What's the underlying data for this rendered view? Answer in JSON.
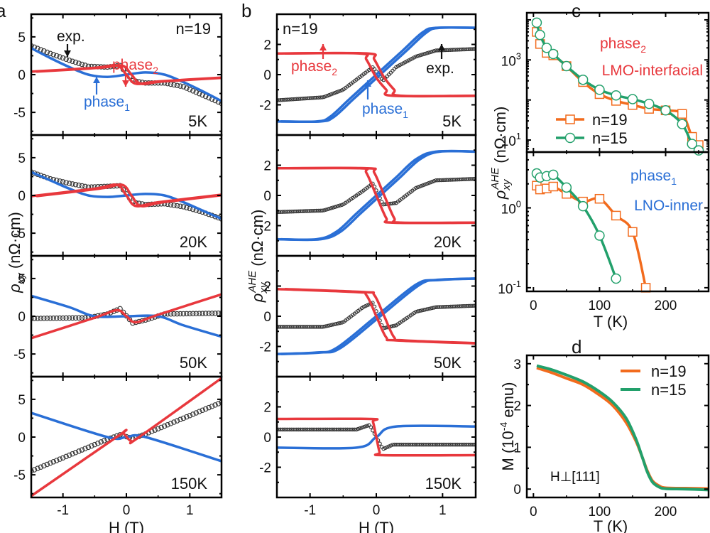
{
  "colors": {
    "phase1": "#2a6fd6",
    "phase2": "#e8383d",
    "exp": "#333333",
    "n19": "#f26b1d",
    "n15": "#22a06b",
    "axis": "#000000"
  },
  "chart_data": [
    {
      "id": "a",
      "panel_label": "a",
      "type": "line",
      "xlabel": "H (T)",
      "ylabel": "ρxy (nΩ·cm)",
      "xlim": [
        -1.5,
        1.5
      ],
      "ylim": [
        -8,
        8
      ],
      "xticks": [
        -1,
        0,
        1
      ],
      "yticks": [
        -5,
        0,
        5
      ],
      "annotations": {
        "n": "n=19",
        "exp": "exp.",
        "phase1": "phase",
        "phase1_sub": "1",
        "phase2": "phase",
        "phase2_sub": "2"
      },
      "subplots": [
        {
          "temp": "5K",
          "series": [
            {
              "name": "exp.",
              "x": [
                -1.5,
                -1.2,
                -0.9,
                -0.6,
                -0.3,
                -0.1,
                0.1,
                0.3,
                0.6,
                0.9,
                1.2,
                1.5
              ],
              "y": [
                3.8,
                2.8,
                1.9,
                1.1,
                1.0,
                1.2,
                -0.8,
                -1.1,
                -1.1,
                -1.6,
                -2.7,
                -3.8
              ]
            },
            {
              "name": "phase1",
              "x": [
                -1.5,
                -1.2,
                -0.9,
                -0.6,
                -0.3,
                0,
                0.3,
                0.6,
                0.9,
                1.2,
                1.5
              ],
              "y": [
                3.5,
                2.2,
                1.0,
                0.0,
                -0.3,
                0.0,
                0.3,
                0.0,
                -1.0,
                -2.2,
                -3.5
              ]
            },
            {
              "name": "phase2",
              "x": [
                -1.5,
                -0.5,
                -0.15,
                0.0,
                0.15,
                0.5,
                1.5
              ],
              "y": [
                0.4,
                0.9,
                1.2,
                0.0,
                -1.2,
                -0.9,
                -0.4
              ]
            }
          ]
        },
        {
          "temp": "20K",
          "series": [
            {
              "name": "exp.",
              "x": [
                -1.5,
                -1.2,
                -0.9,
                -0.6,
                -0.3,
                -0.1,
                0.1,
                0.3,
                0.6,
                0.9,
                1.2,
                1.5
              ],
              "y": [
                3.1,
                2.2,
                1.6,
                1.1,
                1.2,
                1.3,
                -0.9,
                -1.2,
                -1.1,
                -1.5,
                -2.2,
                -3.1
              ]
            },
            {
              "name": "phase1",
              "x": [
                -1.5,
                -1.2,
                -0.9,
                -0.6,
                -0.3,
                0,
                0.3,
                0.6,
                0.9,
                1.2,
                1.5
              ],
              "y": [
                3.1,
                2.0,
                0.9,
                0.0,
                -0.2,
                0.0,
                0.2,
                0.0,
                -0.9,
                -2.0,
                -3.1
              ]
            },
            {
              "name": "phase2",
              "x": [
                -1.5,
                -0.5,
                -0.15,
                0.0,
                0.15,
                0.5,
                1.5
              ],
              "y": [
                -0.1,
                0.9,
                1.4,
                0.0,
                -1.4,
                -0.9,
                0.1
              ]
            }
          ]
        },
        {
          "temp": "50K",
          "series": [
            {
              "name": "exp.",
              "x": [
                -1.5,
                -0.6,
                -0.3,
                -0.1,
                0.1,
                0.3,
                0.6,
                1.5
              ],
              "y": [
                -0.3,
                -0.2,
                0.3,
                1.0,
                -0.9,
                -0.5,
                0.3,
                0.4
              ]
            },
            {
              "name": "phase1",
              "x": [
                -1.5,
                -0.9,
                -0.5,
                0,
                0.5,
                0.9,
                1.5
              ],
              "y": [
                2.7,
                1.2,
                0.0,
                0.0,
                0.0,
                -1.2,
                -2.7
              ]
            },
            {
              "name": "phase2",
              "x": [
                -1.5,
                -0.5,
                -0.15,
                0.0,
                0.15,
                0.5,
                1.5
              ],
              "y": [
                -2.9,
                -0.2,
                0.8,
                0.0,
                -0.8,
                0.2,
                2.9
              ]
            }
          ]
        },
        {
          "temp": "150K",
          "series": [
            {
              "name": "exp.",
              "x": [
                -1.5,
                -0.3,
                -0.1,
                0.1,
                0.3,
                1.5
              ],
              "y": [
                -4.5,
                -0.3,
                0.3,
                -0.2,
                0.4,
                4.6
              ]
            },
            {
              "name": "phase1",
              "x": [
                -1.5,
                -0.3,
                0,
                0.3,
                1.5
              ],
              "y": [
                3.2,
                0.0,
                0.0,
                0.0,
                -3.2
              ]
            },
            {
              "name": "phase2",
              "x": [
                -1.5,
                -0.12,
                -0.05,
                0.07,
                0.2,
                1.5
              ],
              "y": [
                -7.8,
                0.2,
                0.5,
                -0.5,
                0.0,
                7.8
              ]
            }
          ]
        }
      ]
    },
    {
      "id": "b",
      "panel_label": "b",
      "type": "line",
      "xlabel": "H (T)",
      "ylabel": "ρxy^AHE (nΩ·cm)",
      "xlim": [
        -1.5,
        1.5
      ],
      "ylim": [
        -4,
        4
      ],
      "xticks": [
        -1,
        0,
        1
      ],
      "yticks": [
        -2,
        0,
        2
      ],
      "annotations": {
        "n": "n=19",
        "exp": "exp.",
        "phase1": "phase",
        "phase1_sub": "1",
        "phase2": "phase",
        "phase2_sub": "2"
      },
      "subplots": [
        {
          "temp": "5K",
          "series": [
            {
              "name": "exp.",
              "x": [
                -1.5,
                -0.8,
                -0.5,
                -0.2,
                -0.05,
                0.1,
                0.3,
                0.6,
                0.9,
                1.5
              ],
              "y": [
                -1.7,
                -1.5,
                -1.0,
                0.0,
                0.5,
                -0.4,
                0.5,
                1.2,
                1.6,
                1.7
              ]
            },
            {
              "name": "phase1",
              "x": [
                -1.5,
                -0.9,
                -0.7,
                -0.4,
                0,
                0.4,
                0.7,
                0.9,
                1.5
              ],
              "y": [
                -3.1,
                -3.1,
                -2.8,
                -1.6,
                0.0,
                1.6,
                2.8,
                3.1,
                3.1
              ]
            },
            {
              "name": "phase2",
              "x": [
                -1.5,
                -0.25,
                -0.15,
                0.0,
                0.15,
                0.25,
                1.5
              ],
              "y": [
                1.4,
                1.4,
                1.0,
                -0.2,
                -1.0,
                -1.4,
                -1.4
              ]
            }
          ]
        },
        {
          "temp": "20K",
          "series": [
            {
              "name": "exp.",
              "x": [
                -1.5,
                -0.8,
                -0.5,
                -0.2,
                -0.05,
                0.1,
                0.3,
                0.6,
                0.9,
                1.5
              ],
              "y": [
                -1.1,
                -1.0,
                -0.6,
                0.3,
                0.8,
                -0.6,
                -0.5,
                0.5,
                1.0,
                1.1
              ]
            },
            {
              "name": "phase1",
              "x": [
                -1.5,
                -0.9,
                -0.6,
                -0.3,
                0,
                0.3,
                0.6,
                0.9,
                1.5
              ],
              "y": [
                -2.9,
                -2.9,
                -2.4,
                -1.2,
                0.0,
                1.2,
                2.4,
                2.9,
                2.9
              ]
            },
            {
              "name": "phase2",
              "x": [
                -1.5,
                -0.25,
                -0.15,
                0.0,
                0.15,
                0.25,
                1.5
              ],
              "y": [
                1.8,
                1.8,
                1.5,
                0.0,
                -1.5,
                -1.8,
                -1.8
              ]
            }
          ]
        },
        {
          "temp": "50K",
          "series": [
            {
              "name": "exp.",
              "x": [
                -1.5,
                -0.8,
                -0.5,
                -0.2,
                -0.05,
                0.1,
                0.3,
                0.6,
                0.9,
                1.5
              ],
              "y": [
                -0.7,
                -0.7,
                -0.4,
                0.6,
                0.9,
                -0.8,
                -0.6,
                0.3,
                0.6,
                0.7
              ]
            },
            {
              "name": "phase1",
              "x": [
                -1.5,
                -0.9,
                -0.6,
                0,
                0.6,
                0.9,
                1.5
              ],
              "y": [
                -2.5,
                -2.4,
                -2.1,
                0.0,
                2.1,
                2.4,
                2.5
              ]
            },
            {
              "name": "phase2",
              "x": [
                -1.5,
                -0.3,
                -0.15,
                0.0,
                0.15,
                0.3,
                1.5
              ],
              "y": [
                1.8,
                1.6,
                1.4,
                0.0,
                -1.4,
                -1.6,
                -1.8
              ]
            }
          ]
        },
        {
          "temp": "150K",
          "series": [
            {
              "name": "exp.",
              "x": [
                -1.5,
                -0.3,
                -0.1,
                0.1,
                0.25,
                1.5
              ],
              "y": [
                0.5,
                0.5,
                0.8,
                -0.8,
                -0.5,
                -0.5
              ]
            },
            {
              "name": "phase1",
              "x": [
                -1.5,
                -0.3,
                0,
                0.3,
                1.5
              ],
              "y": [
                -0.7,
                -0.7,
                0.0,
                0.7,
                0.7
              ]
            },
            {
              "name": "phase2",
              "x": [
                -1.5,
                -0.1,
                -0.05,
                0.0,
                0.05,
                0.1,
                1.5
              ],
              "y": [
                1.2,
                1.2,
                1.0,
                0.0,
                -1.0,
                -1.2,
                -1.2
              ]
            }
          ]
        }
      ]
    },
    {
      "id": "c",
      "panel_label": "c",
      "type": "line",
      "xlabel": "T (K)",
      "ylabel": "ρxy^AHE (nΩ·cm)",
      "xlim": [
        -10,
        265
      ],
      "xticks": [
        0,
        100,
        200
      ],
      "yscale": "log",
      "legend": [
        {
          "name": "n=19",
          "marker": "square"
        },
        {
          "name": "n=15",
          "marker": "circle"
        }
      ],
      "legend_position": "lower-left",
      "subplots": [
        {
          "label1": "phase",
          "label1_sub": "2",
          "label2": "LMO-interfacial",
          "label_color": "#e8383d",
          "ylim": [
            5,
            15000
          ],
          "yticks": [
            {
              "v": 10,
              "base": "10",
              "exp": "1"
            },
            {
              "v": 1000,
              "base": "10",
              "exp": "3"
            }
          ],
          "series": [
            {
              "name": "n=19",
              "x": [
                5,
                10,
                20,
                30,
                50,
                75,
                100,
                125,
                150,
                175,
                200,
                225,
                240,
                250
              ],
              "y": [
                5000,
                2500,
                1500,
                1300,
                700,
                280,
                140,
                95,
                75,
                60,
                55,
                45,
                12,
                7.5
              ]
            },
            {
              "name": "n=15",
              "x": [
                5,
                10,
                20,
                30,
                50,
                75,
                100,
                125,
                150,
                175,
                200,
                225,
                240,
                250
              ],
              "y": [
                8500,
                4200,
                2000,
                1400,
                700,
                320,
                180,
                130,
                105,
                80,
                55,
                25,
                8,
                5.5
              ]
            }
          ]
        },
        {
          "label1": "phase",
          "label1_sub": "1",
          "label2": "LNO-inner",
          "label_color": "#2a6fd6",
          "ylim": [
            0.09,
            5
          ],
          "yticks": [
            {
              "v": 0.1,
              "base": "10",
              "exp": "-1"
            },
            {
              "v": 1,
              "base": "10",
              "exp": "0"
            }
          ],
          "series": [
            {
              "name": "n=19",
              "x": [
                5,
                10,
                20,
                30,
                50,
                75,
                100,
                125,
                150,
                170
              ],
              "y": [
                1.9,
                1.7,
                1.75,
                1.85,
                1.5,
                1.2,
                1.3,
                0.8,
                0.5,
                0.1
              ]
            },
            {
              "name": "n=15",
              "x": [
                5,
                10,
                20,
                30,
                50,
                75,
                100,
                125
              ],
              "y": [
                2.7,
                2.4,
                2.5,
                2.6,
                1.8,
                1.05,
                0.45,
                0.13
              ]
            }
          ]
        }
      ]
    },
    {
      "id": "d",
      "panel_label": "d",
      "type": "line",
      "xlabel": "T (K)",
      "ylabel": "M (10^-4 emu)",
      "xlim": [
        -10,
        265
      ],
      "ylim": [
        -0.2,
        3.2
      ],
      "xticks": [
        0,
        100,
        200
      ],
      "yticks": [
        0,
        1,
        2,
        3
      ],
      "annotation": "H⊥[111]",
      "legend": [
        {
          "name": "n=19"
        },
        {
          "name": "n=15"
        }
      ],
      "legend_position": "top-right",
      "series": [
        {
          "name": "n=19",
          "x": [
            5,
            25,
            50,
            75,
            100,
            120,
            140,
            155,
            165,
            172,
            180,
            190,
            200,
            230,
            265
          ],
          "y": [
            2.9,
            2.8,
            2.65,
            2.5,
            2.25,
            2.0,
            1.6,
            1.15,
            0.75,
            0.45,
            0.2,
            0.08,
            0.03,
            0.02,
            0.01
          ]
        },
        {
          "name": "n=15",
          "x": [
            5,
            25,
            50,
            75,
            100,
            120,
            140,
            155,
            165,
            172,
            180,
            190,
            200,
            230,
            265
          ],
          "y": [
            2.95,
            2.87,
            2.73,
            2.57,
            2.33,
            2.08,
            1.7,
            1.2,
            0.75,
            0.42,
            0.17,
            0.05,
            0.01,
            0.0,
            -0.02
          ]
        }
      ]
    }
  ]
}
